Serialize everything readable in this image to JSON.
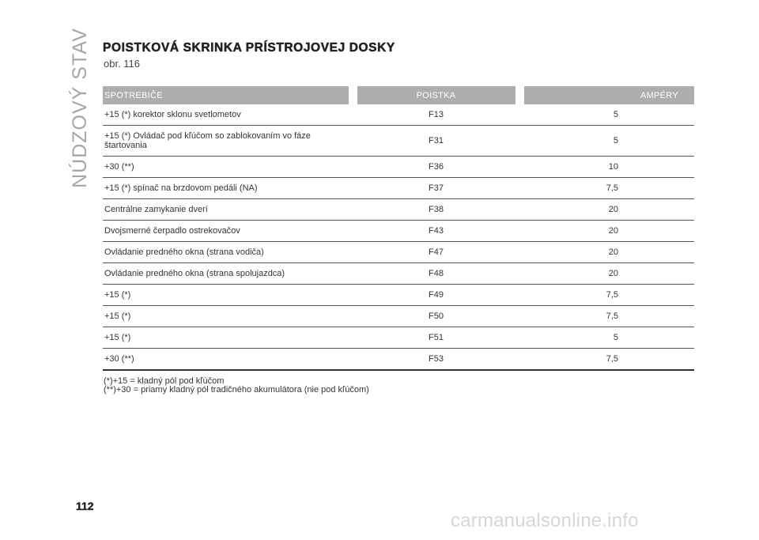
{
  "side_label": "NÚDZOVÝ STAV",
  "title": "POISTKOVÁ SKRINKA PRÍSTROJOVEJ DOSKY",
  "subtitle": "obr. 116",
  "table": {
    "headers": [
      "SPOTREBIČE",
      "POISTKA",
      "AMPÉRY"
    ],
    "rows": [
      {
        "name": "+15 (*) korektor sklonu svetlometov",
        "fuse": "F13",
        "amp": "5"
      },
      {
        "name": "+15 (*) Ovládač pod kľúčom so zablokovaním vo fáze štartovania",
        "fuse": "F31",
        "amp": "5"
      },
      {
        "name": "+30 (**)",
        "fuse": "F36",
        "amp": "10"
      },
      {
        "name": "+15 (*) spínač na brzdovom pedáli (NA)",
        "fuse": "F37",
        "amp": "7,5"
      },
      {
        "name": "Centrálne zamykanie dverí",
        "fuse": "F38",
        "amp": "20"
      },
      {
        "name": "Dvojsmerné čerpadlo ostrekovačov",
        "fuse": "F43",
        "amp": "20"
      },
      {
        "name": "Ovládanie predného okna (strana vodiča)",
        "fuse": "F47",
        "amp": "20"
      },
      {
        "name": "Ovládanie predného okna (strana spolujazdca)",
        "fuse": "F48",
        "amp": "20"
      },
      {
        "name": "+15 (*)",
        "fuse": "F49",
        "amp": "7,5"
      },
      {
        "name": "+15 (*)",
        "fuse": "F50",
        "amp": "7,5"
      },
      {
        "name": "+15 (*)",
        "fuse": "F51",
        "amp": "5"
      },
      {
        "name": "+30 (**)",
        "fuse": "F53",
        "amp": "7,5"
      }
    ]
  },
  "notes": [
    "(*)+15 = kladný pól pod kľúčom",
    "(**)+30 = priamy kladný pól tradičného akumulátora (nie pod kľúčom)"
  ],
  "page_number": "112",
  "watermark": "carmanualsonline.info"
}
